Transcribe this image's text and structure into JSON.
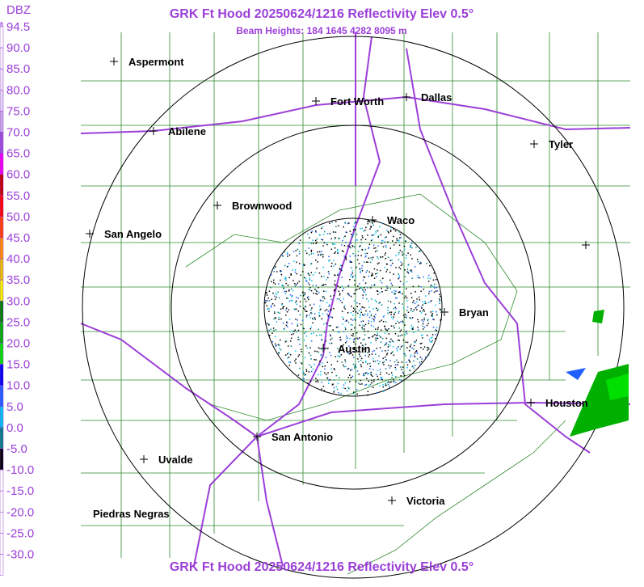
{
  "header": {
    "title": "GRK Ft Hood 20250624/1216 Reflectivity Elev 0.5°",
    "subtitle": "Beam Heights: 184 1645 4282 8095 m"
  },
  "footer": {
    "title": "GRK Ft Hood 20250624/1216 Reflectivity Elev 0.5°"
  },
  "legend": {
    "unit": "DBZ",
    "items": [
      {
        "label": "94.5",
        "color": "#ffffff"
      },
      {
        "label": "90.0",
        "color": "#f4f0fa"
      },
      {
        "label": "85.0",
        "color": "#ece4f6"
      },
      {
        "label": "80.0",
        "color": "#e2d4f2"
      },
      {
        "label": "75.0",
        "color": "#c8a8e8"
      },
      {
        "label": "70.0",
        "color": "#9a50d8"
      },
      {
        "label": "65.0",
        "color": "#f000f0"
      },
      {
        "label": "60.0",
        "color": "#c00000"
      },
      {
        "label": "55.0",
        "color": "#ff0000"
      },
      {
        "label": "50.0",
        "color": "#ff4000"
      },
      {
        "label": "45.0",
        "color": "#ff9000"
      },
      {
        "label": "40.0",
        "color": "#e8c000"
      },
      {
        "label": "35.0",
        "color": "#f0f000"
      },
      {
        "label": "30.0",
        "color": "#008000"
      },
      {
        "label": "25.0",
        "color": "#00b000"
      },
      {
        "label": "20.0",
        "color": "#00e000"
      },
      {
        "label": "15.0",
        "color": "#0000f0"
      },
      {
        "label": "10.0",
        "color": "#2060ff"
      },
      {
        "label": "5.0",
        "color": "#00c0f0"
      },
      {
        "label": "0.0",
        "color": "#008080"
      },
      {
        "label": "-5.0",
        "color": "#000000"
      },
      {
        "label": "-10.0",
        "color": "#ffffff"
      },
      {
        "label": "-15.0",
        "color": "#ffffff"
      },
      {
        "label": "-20.0",
        "color": "#ffffff"
      },
      {
        "label": "-25.0",
        "color": "#ffffff"
      },
      {
        "label": "-30.0",
        "color": "#ffffff"
      }
    ]
  },
  "cities": [
    "Aspermont",
    "Fort Worth",
    "Dallas",
    "Abilene",
    "Tyler",
    "Brownwood",
    "Waco",
    "San Angelo",
    "Bryan",
    "Austin",
    "Houston",
    "San Antonio",
    "Uvalde",
    "Victoria",
    "Piedras Negras"
  ]
}
